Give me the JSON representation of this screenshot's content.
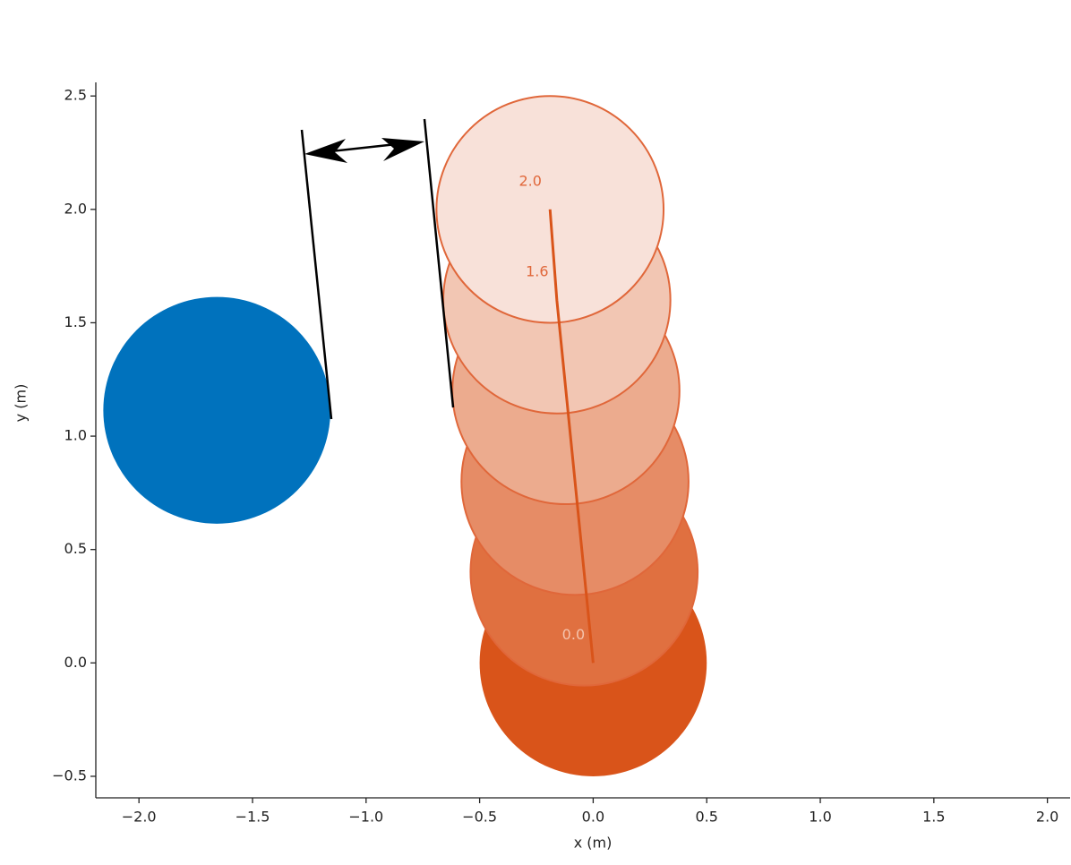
{
  "chart_data": {
    "type": "circles",
    "xlabel": "x (m)",
    "ylabel": "y (m)",
    "xlim": [
      -2.19,
      2.1
    ],
    "ylim": [
      -0.595,
      2.56
    ],
    "xticks": [
      {
        "value": -2,
        "label": "−2.0"
      },
      {
        "value": -1.5,
        "label": "−1.5"
      },
      {
        "value": -1,
        "label": "−1.0"
      },
      {
        "value": -0.5,
        "label": "−0.5"
      },
      {
        "value": 0,
        "label": "0.0"
      },
      0.5,
      {
        "value": 1,
        "label": "1.0"
      },
      1.5,
      {
        "value": 2,
        "label": "2.0"
      }
    ],
    "yticks": [
      {
        "value": -0.5,
        "label": "−0.5"
      },
      {
        "value": 0,
        "label": "0.0"
      },
      0.5,
      {
        "value": 1,
        "label": "1.0"
      },
      1.5,
      {
        "value": 2,
        "label": "2.0"
      },
      2.5
    ],
    "series": [
      {
        "x": [
          -1.657
        ],
        "values": [
          1.114
        ],
        "radii": [
          0.5
        ],
        "colors": [
          "#0072bd"
        ]
      },
      {
        "x": [
          0,
          -0.04,
          -0.08,
          -0.12,
          -0.16,
          -0.19
        ],
        "values": [
          0,
          0.4,
          0.8,
          1.2,
          1.6,
          2.0
        ],
        "radii": [
          0.5,
          0.5,
          0.5,
          0.5,
          0.5,
          0.5
        ],
        "colors": [
          "#d9541a",
          "#e07040",
          "#e68c66",
          "#ecab8e",
          "#f2c6b3",
          "#f8e1d9"
        ],
        "edgecolor": "#e0673a",
        "line_color": "#d9541a",
        "point_labels": [
          "0.0",
          null,
          null,
          null,
          "1.6",
          "2.0"
        ],
        "label_colors": [
          "#f5c4ad",
          null,
          null,
          null,
          "#e0673a",
          "#e0673a"
        ]
      }
    ]
  }
}
